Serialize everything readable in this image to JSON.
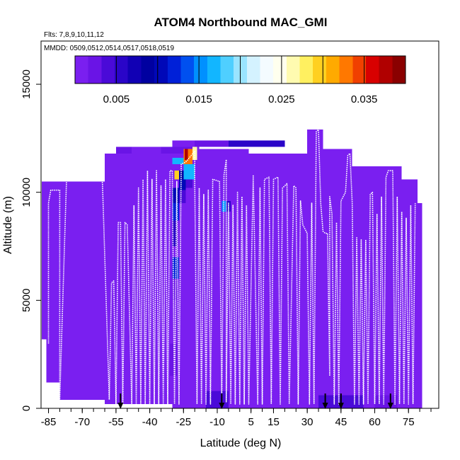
{
  "chart_data": {
    "type": "heatmap",
    "title": "ATOM4 Northbound MAC_GMI",
    "flights_label": "Flts: 7,8,9,10,11,12",
    "dates_label": "MMDD: 0509,0512,0514,0517,0518,0519",
    "xlabel": "Latitude (deg N)",
    "ylabel": "Altitude (m)",
    "xlim": [
      -88,
      85
    ],
    "ylim": [
      0,
      17000
    ],
    "x_ticks": [
      -85,
      -70,
      -55,
      -40,
      -25,
      -10,
      5,
      15,
      30,
      45,
      60,
      75
    ],
    "y_ticks": [
      0,
      5000,
      10000,
      15000
    ],
    "colorbar": {
      "min": 0,
      "max": 0.04,
      "ticks": [
        0.005,
        0.015,
        0.025,
        0.035
      ],
      "tick_labels": [
        "0.005",
        "0.015",
        "0.025",
        "0.035"
      ],
      "colors": [
        "#7a1ff0",
        "#6a14e6",
        "#4a0ad8",
        "#2a05c8",
        "#1100b4",
        "#0000a0",
        "#0008b8",
        "#0020d8",
        "#0050f0",
        "#0090ff",
        "#12b6ff",
        "#4fcfff",
        "#9ae4ff",
        "#d4f2ff",
        "#f4fbff",
        "#ffffee",
        "#fffbb0",
        "#fff060",
        "#ffd020",
        "#ffaa00",
        "#ff7800",
        "#f04000",
        "#d80000",
        "#b00000",
        "#8a0000"
      ]
    },
    "background_value": 0.0003,
    "data_region": [
      {
        "lat_min": -88,
        "lat_max": -80,
        "alt_min": 3200,
        "alt_max": 10500
      },
      {
        "lat_min": -86,
        "lat_max": -80,
        "alt_min": 1200,
        "alt_max": 3200
      },
      {
        "lat_min": -80,
        "lat_max": -60,
        "alt_min": 400,
        "alt_max": 10500
      },
      {
        "lat_min": -60,
        "lat_max": -30,
        "alt_min": 200,
        "alt_max": 11800
      },
      {
        "lat_min": -30,
        "lat_max": -18,
        "alt_min": 0,
        "alt_max": 12400
      },
      {
        "lat_min": -18,
        "lat_max": 4,
        "alt_min": 0,
        "alt_max": 12000
      },
      {
        "lat_min": 4,
        "lat_max": 30,
        "alt_min": 0,
        "alt_max": 11800
      },
      {
        "lat_min": 30,
        "lat_max": 37,
        "alt_min": 0,
        "alt_max": 12900
      },
      {
        "lat_min": 37,
        "lat_max": 50,
        "alt_min": 0,
        "alt_max": 12000
      },
      {
        "lat_min": 50,
        "lat_max": 72,
        "alt_min": 0,
        "alt_max": 11200
      },
      {
        "lat_min": 72,
        "lat_max": 79,
        "alt_min": 0,
        "alt_max": 10600
      },
      {
        "lat_min": 79,
        "lat_max": 81,
        "alt_min": 0,
        "alt_max": 9500
      }
    ],
    "patches": [
      {
        "lat_min": -55,
        "lat_max": -20,
        "alt_min": 11800,
        "alt_max": 12100,
        "value": 0.003
      },
      {
        "lat_min": -48,
        "lat_max": -35,
        "alt_min": 11800,
        "alt_max": 12100,
        "value": 0.0015
      },
      {
        "lat_min": -20,
        "lat_max": 5,
        "alt_min": 12100,
        "alt_max": 12400,
        "value": 0.003
      },
      {
        "lat_min": -5,
        "lat_max": 20,
        "alt_min": 12100,
        "alt_max": 12400,
        "value": 0.0055
      },
      {
        "lat_min": -25,
        "lat_max": -21,
        "alt_min": 11300,
        "alt_max": 12000,
        "value": 0.033
      },
      {
        "lat_min": -24.5,
        "lat_max": -23,
        "alt_min": 11500,
        "alt_max": 12000,
        "value": 0.037
      },
      {
        "lat_min": -21,
        "lat_max": -19,
        "alt_min": 11500,
        "alt_max": 12100,
        "value": 0.026
      },
      {
        "lat_min": -30,
        "lat_max": -25,
        "alt_min": 11300,
        "alt_max": 11600,
        "value": 0.017
      },
      {
        "lat_min": -29,
        "lat_max": -27,
        "alt_min": 10600,
        "alt_max": 11000,
        "value": 0.03
      },
      {
        "lat_min": -27,
        "lat_max": -25,
        "alt_min": 10600,
        "alt_max": 11000,
        "value": 0.009
      },
      {
        "lat_min": -25,
        "lat_max": -20,
        "alt_min": 10600,
        "alt_max": 11300,
        "value": 0.016
      },
      {
        "lat_min": -27,
        "lat_max": -24,
        "alt_min": 10100,
        "alt_max": 10600,
        "value": 0.011
      },
      {
        "lat_min": -24,
        "lat_max": -21,
        "alt_min": 10200,
        "alt_max": 10600,
        "value": 0.004
      },
      {
        "lat_min": -30,
        "lat_max": -27,
        "alt_min": 9500,
        "alt_max": 10200,
        "value": 0.01
      },
      {
        "lat_min": -27,
        "lat_max": -24,
        "alt_min": 9500,
        "alt_max": 10100,
        "value": 0.004
      },
      {
        "lat_min": -30,
        "lat_max": -27,
        "alt_min": 8700,
        "alt_max": 9500,
        "value": 0.012
      },
      {
        "lat_min": -30,
        "lat_max": -28,
        "alt_min": 7500,
        "alt_max": 8700,
        "value": 0.006
      },
      {
        "lat_min": -30,
        "lat_max": -27,
        "alt_min": 6000,
        "alt_max": 7000,
        "value": 0.012
      },
      {
        "lat_min": -30,
        "lat_max": -28,
        "alt_min": 5000,
        "alt_max": 6000,
        "value": 0.003
      },
      {
        "lat_min": -27,
        "lat_max": -25,
        "alt_min": 5000,
        "alt_max": 9500,
        "value": 0.0015
      },
      {
        "lat_min": -31,
        "lat_max": -28,
        "alt_min": 1500,
        "alt_max": 5000,
        "value": 0.0012
      },
      {
        "lat_min": -31,
        "lat_max": -28,
        "alt_min": 1500,
        "alt_max": 3000,
        "value": 0.002
      },
      {
        "lat_min": -8,
        "lat_max": -6,
        "alt_min": 9100,
        "alt_max": 9600,
        "value": 0.015
      },
      {
        "lat_min": -6,
        "lat_max": -4,
        "alt_min": 9100,
        "alt_max": 9600,
        "value": 0.005
      },
      {
        "lat_min": -15,
        "lat_max": 35,
        "alt_min": 0,
        "alt_max": 1000,
        "value": 0.0015
      },
      {
        "lat_min": -15,
        "lat_max": -5,
        "alt_min": 0,
        "alt_max": 800,
        "value": 0.0035
      },
      {
        "lat_min": 35,
        "lat_max": 55,
        "alt_min": 0,
        "alt_max": 600,
        "value": 0.0045
      },
      {
        "lat_min": 60,
        "lat_max": 70,
        "alt_min": 0,
        "alt_max": 600,
        "value": 0.003
      },
      {
        "lat_min": 25,
        "lat_max": 38,
        "alt_min": 600,
        "alt_max": 1200,
        "value": 0.0015
      },
      {
        "lat_min": -45,
        "lat_max": -40,
        "alt_min": 1000,
        "alt_max": 6000,
        "value": 0.0015
      },
      {
        "lat_min": -68,
        "lat_max": -65,
        "alt_min": 1000,
        "alt_max": 4000,
        "value": 0.0012
      },
      {
        "lat_min": -40,
        "lat_max": -30,
        "alt_min": 3000,
        "alt_max": 9000,
        "value": 0.001
      }
    ],
    "flight_tracks": [
      [
        [
          -85,
          3000
        ],
        [
          -85,
          9500
        ],
        [
          -84,
          10100
        ],
        [
          -80,
          10100
        ],
        [
          -80,
          400
        ],
        [
          -77,
          10600
        ],
        [
          -73,
          11000
        ],
        [
          -64,
          11200
        ],
        [
          -62,
          11200
        ],
        [
          -61,
          10400
        ],
        [
          -58,
          400
        ],
        [
          -57,
          5800
        ],
        [
          -56,
          5900
        ],
        [
          -55,
          200
        ],
        [
          -54,
          8600
        ],
        [
          -53,
          8600
        ],
        [
          -52,
          200
        ],
        [
          -51,
          8600
        ],
        [
          -50,
          8500
        ],
        [
          -48,
          200
        ],
        [
          -47,
          9400
        ],
        [
          -46,
          200
        ],
        [
          -45,
          10200
        ],
        [
          -44,
          200
        ],
        [
          -43,
          10600
        ],
        [
          -42,
          200
        ],
        [
          -41,
          11000
        ],
        [
          -40,
          200
        ],
        [
          -39,
          10600
        ],
        [
          -38,
          200
        ],
        [
          -37,
          11000
        ],
        [
          -36,
          200
        ],
        [
          -35,
          10300
        ],
        [
          -34,
          200
        ],
        [
          -33,
          10600
        ],
        [
          -32,
          200
        ],
        [
          -31,
          11000
        ],
        [
          -30,
          11000
        ],
        [
          -29,
          200
        ],
        [
          -28,
          10500
        ],
        [
          -27,
          200
        ],
        [
          -26,
          11300
        ],
        [
          -24,
          11400
        ],
        [
          -20,
          11900
        ],
        [
          -20,
          10400
        ],
        [
          -19,
          200
        ],
        [
          -18,
          10200
        ],
        [
          -17,
          200
        ],
        [
          -16,
          9900
        ],
        [
          -15,
          200
        ],
        [
          -14,
          10100
        ],
        [
          -13,
          200
        ],
        [
          -12,
          10600
        ],
        [
          -9,
          10500
        ],
        [
          -8,
          200
        ],
        [
          -7,
          10800
        ],
        [
          -6,
          11500
        ]
      ],
      [
        [
          -6,
          11500
        ],
        [
          -6,
          300
        ],
        [
          -5,
          9500
        ],
        [
          -4,
          200
        ],
        [
          -3,
          9400
        ],
        [
          -2,
          200
        ],
        [
          -1,
          10000
        ],
        [
          0,
          200
        ],
        [
          1,
          9800
        ],
        [
          2,
          200
        ],
        [
          3,
          9400
        ],
        [
          4,
          200
        ],
        [
          6,
          10800
        ],
        [
          8,
          200
        ],
        [
          9,
          10200
        ],
        [
          10,
          200
        ],
        [
          11,
          10600
        ],
        [
          13,
          10700
        ],
        [
          14,
          200
        ],
        [
          15,
          10600
        ],
        [
          17,
          10700
        ],
        [
          18,
          200
        ],
        [
          19,
          10200
        ],
        [
          21,
          10400
        ],
        [
          22,
          200
        ],
        [
          24,
          10300
        ],
        [
          25,
          10200
        ],
        [
          26,
          200
        ],
        [
          27,
          9600
        ],
        [
          28,
          8500
        ],
        [
          30,
          8100
        ],
        [
          31,
          200
        ],
        [
          32,
          9500
        ],
        [
          33,
          200
        ],
        [
          34,
          12800
        ],
        [
          35,
          12900
        ],
        [
          36,
          9500
        ],
        [
          37,
          8200
        ],
        [
          38,
          8100
        ],
        [
          39,
          8100
        ],
        [
          40,
          1500
        ],
        [
          40,
          9800
        ],
        [
          41,
          9000
        ],
        [
          42,
          200
        ],
        [
          43,
          8600
        ],
        [
          44,
          200
        ],
        [
          45,
          9600
        ],
        [
          47,
          10000
        ],
        [
          48,
          11700
        ],
        [
          49,
          11800
        ],
        [
          50,
          9500
        ],
        [
          51,
          200
        ],
        [
          52,
          7900
        ],
        [
          53,
          200
        ],
        [
          54,
          7800
        ],
        [
          55,
          200
        ],
        [
          56,
          7800
        ],
        [
          57,
          200
        ],
        [
          58,
          9900
        ],
        [
          59,
          10000
        ],
        [
          60,
          200
        ],
        [
          61,
          9000
        ],
        [
          62,
          200
        ],
        [
          63,
          9800
        ],
        [
          64,
          200
        ],
        [
          65,
          10700
        ],
        [
          66,
          11000
        ],
        [
          68,
          11000
        ],
        [
          69,
          200
        ],
        [
          70,
          9800
        ],
        [
          71,
          200
        ],
        [
          72,
          9100
        ],
        [
          73,
          200
        ],
        [
          74,
          8800
        ],
        [
          75,
          200
        ],
        [
          76,
          9400
        ],
        [
          77,
          200
        ],
        [
          78,
          9500
        ]
      ]
    ],
    "arrows_lat": [
      -53,
      -8,
      38,
      45,
      67
    ]
  }
}
